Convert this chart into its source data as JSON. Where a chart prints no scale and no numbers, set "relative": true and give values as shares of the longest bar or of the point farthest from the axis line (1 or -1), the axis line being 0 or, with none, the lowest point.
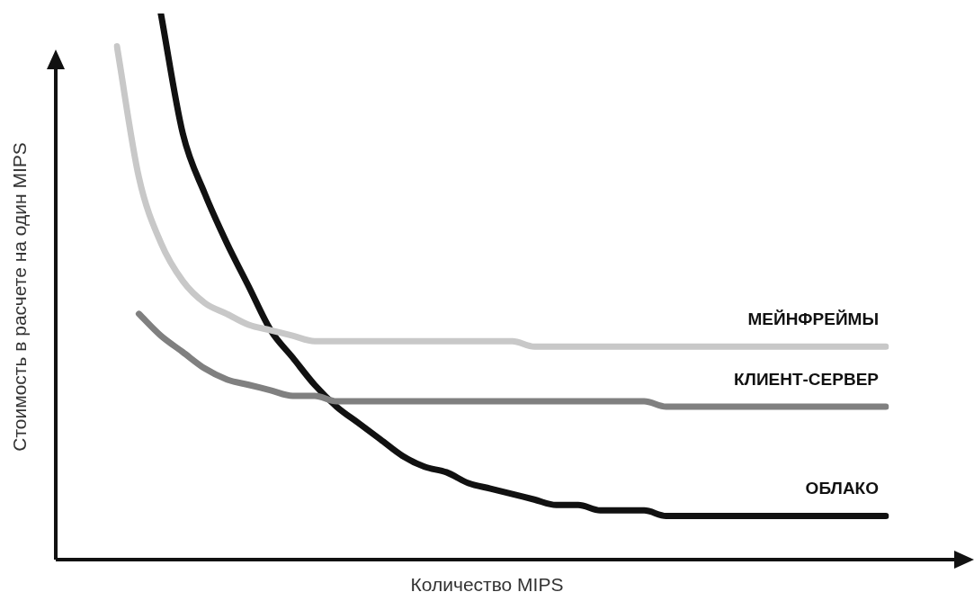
{
  "chart_data": {
    "type": "line",
    "relative": true,
    "xlabel": "Количество MIPS",
    "ylabel": "Стоимость в расчете на один MIPS",
    "legend": false,
    "marker": "none",
    "line_style": "solid",
    "categories": [
      null,
      null,
      null,
      null,
      null,
      null,
      null,
      null,
      null,
      null,
      null,
      null,
      null,
      null,
      null,
      null,
      null,
      null,
      null,
      null,
      null,
      null,
      null,
      null,
      null,
      null,
      null,
      null,
      null,
      null,
      null,
      null,
      null,
      null,
      null,
      null
    ],
    "series": [
      {
        "name": "МЕЙНФРЕЙМЫ",
        "color": "#c8c8c8",
        "values": [
          0.94,
          0.7,
          0.58,
          0.51,
          0.47,
          0.45,
          0.43,
          0.42,
          0.41,
          0.4,
          0.4,
          0.4,
          0.4,
          0.4,
          0.4,
          0.4,
          0.4,
          0.4,
          0.4,
          0.39,
          0.39,
          0.39,
          0.39,
          0.39,
          0.39,
          0.39,
          0.39,
          0.39,
          0.39,
          0.39,
          0.39,
          0.39,
          0.39,
          0.39,
          0.39,
          0.39
        ]
      },
      {
        "name": "КЛИЕНТ-СЕРВЕР",
        "color": "#808080",
        "values": [
          null,
          0.45,
          0.41,
          0.38,
          0.35,
          0.33,
          0.32,
          0.31,
          0.3,
          0.3,
          0.29,
          0.29,
          0.29,
          0.29,
          0.29,
          0.29,
          0.29,
          0.29,
          0.29,
          0.29,
          0.29,
          0.29,
          0.29,
          0.29,
          0.29,
          0.28,
          0.28,
          0.28,
          0.28,
          0.28,
          0.28,
          0.28,
          0.28,
          0.28,
          0.28,
          0.28
        ]
      },
      {
        "name": "ОБЛАКО",
        "color": "#111111",
        "values": [
          null,
          null,
          1,
          0.78,
          0.67,
          0.58,
          0.5,
          0.42,
          0.37,
          0.32,
          0.28,
          0.25,
          0.22,
          0.19,
          0.17,
          0.16,
          0.14,
          0.13,
          0.12,
          0.11,
          0.1,
          0.1,
          0.09,
          0.09,
          0.09,
          0.08,
          0.08,
          0.08,
          0.08,
          0.08,
          0.08,
          0.08,
          0.08,
          0.08,
          0.08,
          0.08
        ]
      }
    ]
  }
}
